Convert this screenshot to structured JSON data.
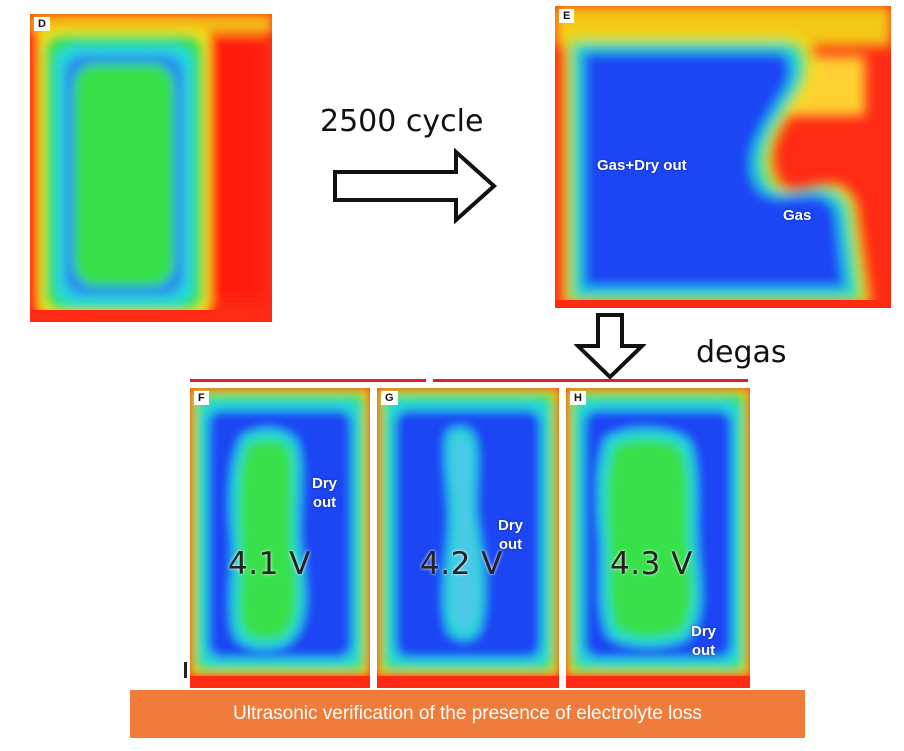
{
  "panel_tags": {
    "d": "D",
    "e": "E",
    "f": "F",
    "g": "G",
    "h": "H"
  },
  "labels": {
    "cycle": "2500 cycle",
    "degas": "degas",
    "e_main": "Gas+Dry out",
    "e_gas": "Gas",
    "f_dry": "Dry\nout",
    "g_dry": "Dry\nout",
    "h_dry": "Dry\nout"
  },
  "voltages": {
    "f": "4.1 V",
    "g": "4.2 V",
    "h": "4.3 V"
  },
  "caption": "Ultrasonic verification of the presence of electrolyte loss",
  "colors": {
    "heat_red": "#ff2a14",
    "heat_yellow": "#f4e018",
    "heat_green": "#38e048",
    "heat_cyan": "#28d8d8",
    "heat_blue": "#1a44f4",
    "caption_bg": "#f07c3c",
    "divider": "#e02020"
  }
}
